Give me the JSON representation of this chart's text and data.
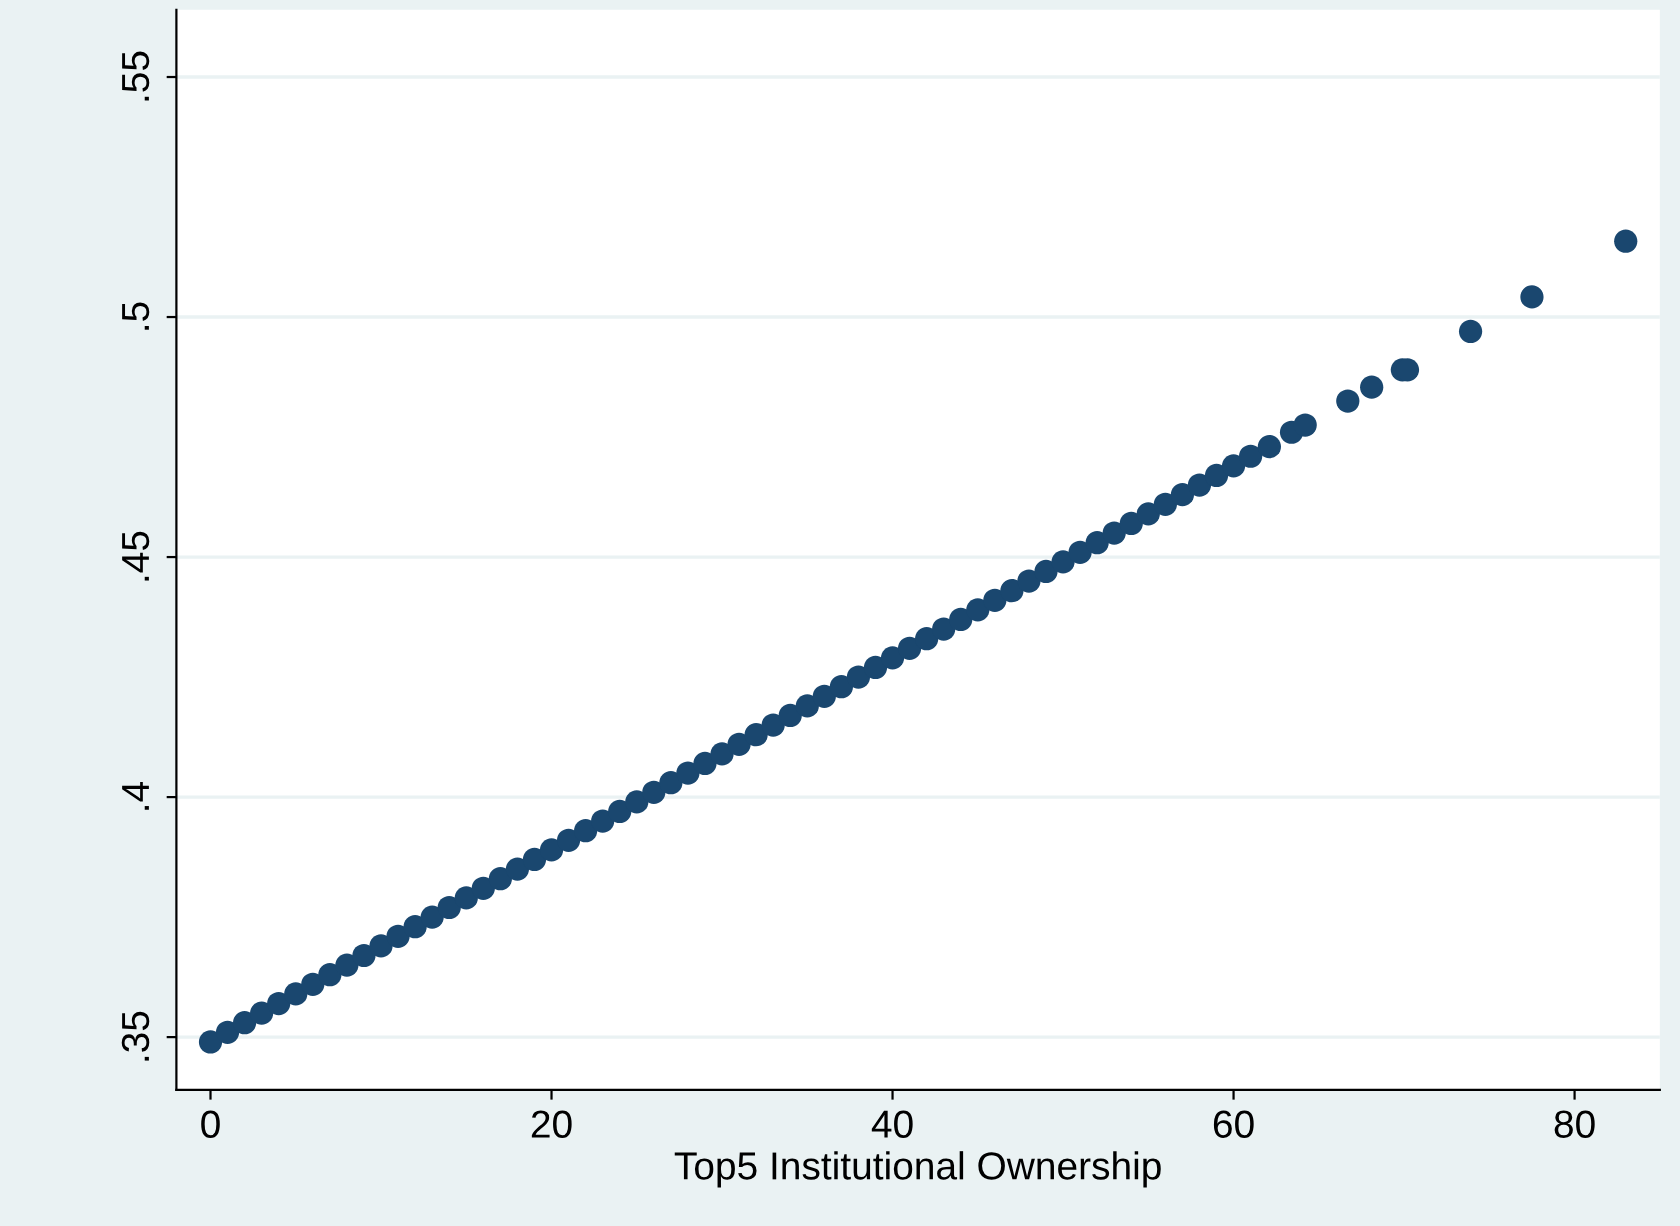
{
  "chart_data": {
    "type": "scatter",
    "xlabel": "Top5 Institutional Ownership",
    "xlim": [
      -2,
      85
    ],
    "xticks": [
      0,
      20,
      40,
      60,
      80
    ],
    "ylim": [
      0.339,
      0.564
    ],
    "yticks": [
      {
        "value": 0.35,
        "label": ".35"
      },
      {
        "value": 0.4,
        "label": ".4"
      },
      {
        "value": 0.45,
        "label": ".45"
      },
      {
        "value": 0.5,
        "label": ".5"
      },
      {
        "value": 0.55,
        "label": ".55"
      }
    ],
    "grid": "y",
    "marker": "circle",
    "legend": false,
    "series": [
      {
        "color": "#1a476f",
        "x": [
          0,
          1,
          2,
          3,
          4,
          5,
          6,
          7,
          8,
          9,
          10,
          11,
          12,
          13,
          14,
          15,
          16,
          17,
          18,
          19,
          20,
          21,
          22,
          23,
          24,
          25,
          26,
          27,
          28,
          29,
          30,
          31,
          32,
          33,
          34,
          35,
          36,
          37,
          38,
          39,
          40,
          41,
          42,
          43,
          44,
          45,
          46,
          47,
          48,
          49,
          50,
          51,
          52,
          53,
          54,
          55,
          56,
          57,
          58,
          59,
          60,
          61,
          62.1,
          63.4,
          64.2,
          66.7,
          68.1,
          69.9,
          70.2,
          73.9,
          77.5,
          83
        ],
        "values": [
          0.349,
          0.351,
          0.353,
          0.355,
          0.357,
          0.359,
          0.361,
          0.363,
          0.365,
          0.367,
          0.369,
          0.371,
          0.373,
          0.375,
          0.377,
          0.379,
          0.381,
          0.383,
          0.385,
          0.387,
          0.389,
          0.391,
          0.393,
          0.395,
          0.397,
          0.399,
          0.401,
          0.403,
          0.405,
          0.407,
          0.409,
          0.411,
          0.413,
          0.415,
          0.417,
          0.419,
          0.421,
          0.423,
          0.425,
          0.427,
          0.429,
          0.431,
          0.433,
          0.435,
          0.437,
          0.439,
          0.441,
          0.443,
          0.445,
          0.447,
          0.449,
          0.451,
          0.453,
          0.455,
          0.457,
          0.459,
          0.461,
          0.463,
          0.465,
          0.467,
          0.469,
          0.471,
          0.473,
          0.476,
          0.4775,
          0.4825,
          0.4854,
          0.489,
          0.489,
          0.497,
          0.5042,
          0.5158
        ]
      }
    ]
  }
}
